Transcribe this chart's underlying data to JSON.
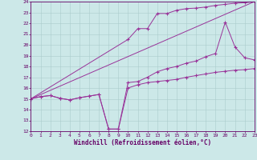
{
  "bg_color": "#cce8e8",
  "grid_color": "#aacccc",
  "line_color": "#993399",
  "xlabel": "Windchill (Refroidissement éolien,°C)",
  "xlim": [
    0,
    23
  ],
  "ylim": [
    12,
    24
  ],
  "xtick_labels": [
    "0",
    "1",
    "2",
    "3",
    "4",
    "5",
    "6",
    "7",
    "8",
    "9",
    "10",
    "11",
    "12",
    "13",
    "14",
    "15",
    "16",
    "17",
    "18",
    "19",
    "20",
    "21",
    "22",
    "23"
  ],
  "ytick_labels": [
    "12",
    "13",
    "14",
    "15",
    "16",
    "17",
    "18",
    "19",
    "20",
    "21",
    "22",
    "23",
    "24"
  ],
  "line1_x": [
    0,
    1,
    2,
    3,
    4,
    5,
    6,
    7,
    8,
    9,
    10,
    11,
    12,
    13,
    14,
    15,
    16,
    17,
    18,
    19,
    20,
    21,
    22,
    23
  ],
  "line1_y": [
    15.0,
    15.2,
    15.3,
    15.05,
    14.9,
    15.1,
    15.25,
    15.4,
    12.2,
    12.2,
    16.0,
    16.3,
    16.5,
    16.6,
    16.7,
    16.8,
    17.0,
    17.15,
    17.3,
    17.45,
    17.55,
    17.65,
    17.7,
    17.8
  ],
  "line2_x": [
    0,
    1,
    2,
    3,
    4,
    5,
    6,
    7,
    8,
    9,
    10,
    11,
    12,
    13,
    14,
    15,
    16,
    17,
    18,
    19,
    20,
    21,
    22,
    23
  ],
  "line2_y": [
    15.0,
    15.2,
    15.3,
    15.05,
    14.9,
    15.1,
    15.25,
    15.4,
    12.2,
    12.2,
    16.5,
    16.6,
    17.0,
    17.5,
    17.8,
    18.0,
    18.3,
    18.5,
    18.9,
    19.2,
    22.1,
    19.8,
    18.8,
    18.6
  ],
  "line3_x": [
    0,
    23
  ],
  "line3_y": [
    15.0,
    24.0
  ],
  "line4_x": [
    0,
    10,
    11,
    12,
    13,
    14,
    15,
    16,
    17,
    18,
    19,
    20,
    21,
    22,
    23
  ],
  "line4_y": [
    15.0,
    20.5,
    21.5,
    21.5,
    22.9,
    22.9,
    23.2,
    23.35,
    23.4,
    23.5,
    23.65,
    23.75,
    23.85,
    23.9,
    24.0
  ],
  "tick_color": "#660066",
  "label_fontsize": 5.5,
  "tick_fontsize": 4.5,
  "xlabel_fontsize": 5.5
}
